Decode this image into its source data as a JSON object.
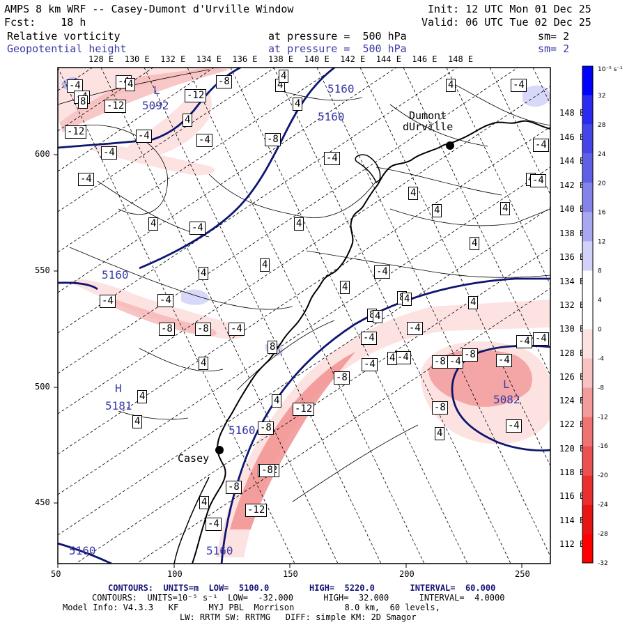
{
  "header": {
    "title": "AMPS 8 km WRF -- Casey-Dumont d'Urville Window",
    "init": "Init: 12 UTC Mon 01 Dec 25",
    "fcst": "Fcst:    18 h",
    "valid": "Valid: 06 UTC Tue 02 Dec 25",
    "field1": {
      "name": "Relative vorticity",
      "level": "at pressure =  500 hPa",
      "sm": "sm= 2"
    },
    "field2": {
      "name": "Geopotential height",
      "level": "at pressure =  500 hPa",
      "sm": "sm= 2"
    }
  },
  "axes": {
    "x_ticks": [
      "50",
      "100",
      "150",
      "200",
      "250"
    ],
    "y_ticks": [
      "600",
      "550",
      "500",
      "450"
    ],
    "top_lon_labels": [
      "128 E",
      "130 E",
      "132 E",
      "134 E",
      "136 E",
      "138 E",
      "140 E",
      "142 E",
      "144 E",
      "146 E",
      "148 E"
    ],
    "right_lon_labels": [
      "148 E",
      "146 E",
      "144 E",
      "142 E",
      "140 E",
      "138 E",
      "136 E",
      "134 E",
      "132 E",
      "130 E",
      "128 E",
      "126 E",
      "124 E",
      "122 E",
      "120 E",
      "118 E",
      "116 E",
      "114 E",
      "112 E"
    ]
  },
  "colorbar": {
    "unit": "10⁻⁵ s⁻¹",
    "ticks": [
      "32",
      "28",
      "24",
      "20",
      "16",
      "12",
      "8",
      "4",
      "0",
      "-4",
      "-8",
      "-12",
      "-16",
      "-20",
      "-24",
      "-28",
      "-32"
    ],
    "colors": [
      "#0000ff",
      "#2a2af0",
      "#4545e8",
      "#6060e6",
      "#8383ea",
      "#a8a8f0",
      "#d2d2f8",
      "#ffffff",
      "#ffffff",
      "#fde2e2",
      "#f9c2c2",
      "#f49c9c",
      "#ef7373",
      "#ec5050",
      "#ea2f2f",
      "#e81515",
      "#ff0000"
    ]
  },
  "places": [
    {
      "name": "Dumont\ndUrville"
    },
    {
      "name": "Casey"
    }
  ],
  "height_labels": [
    "5160",
    "5160",
    "5092",
    "5160",
    "5160",
    "5082",
    "5181",
    "5160",
    "5160",
    "L",
    "L",
    "H"
  ],
  "vort_labels": [
    "-4",
    "-4",
    "-12",
    "-4",
    "8",
    "-12",
    "-8",
    "-12",
    "-4",
    "-4",
    "4",
    "4",
    "4",
    "-4",
    "4",
    "-8",
    "-4",
    "4",
    "-4",
    "4",
    "-4",
    "4",
    "4",
    "4",
    "-4",
    "4",
    "4",
    "4",
    "4",
    "4",
    "4",
    "4",
    "-4",
    "8",
    "-4",
    "-4",
    "-8",
    "-8",
    "-4",
    "4",
    "8",
    "-4",
    "-4",
    "4",
    "-4",
    "-4",
    "-8",
    "-8",
    "-12",
    "4",
    "-8",
    "-12",
    "-8",
    "4",
    "-12",
    "-4",
    "-4",
    "4",
    "4",
    "-8",
    "4",
    "-4",
    "-4",
    "-8",
    "-4",
    "4",
    "8",
    "4",
    "4",
    "-4",
    "-4",
    "-4",
    "-8"
  ],
  "footer": {
    "line1": "CONTOURS:  UNITS=m  LOW=  5100.0        HIGH=  5220.0       INTERVAL=  60.000",
    "line2": "CONTOURS:  UNITS=10⁻⁵ s⁻¹  LOW=  -32.000      HIGH=  32.000      INTERVAL=  4.0000",
    "line3": "Model Info: V4.3.3   KF      MYJ PBL  Morrison          8.0 km,  60 levels,",
    "line4": "LW: RRTM SW: RRTMG   DIFF: simple KM: 2D Smagor"
  }
}
